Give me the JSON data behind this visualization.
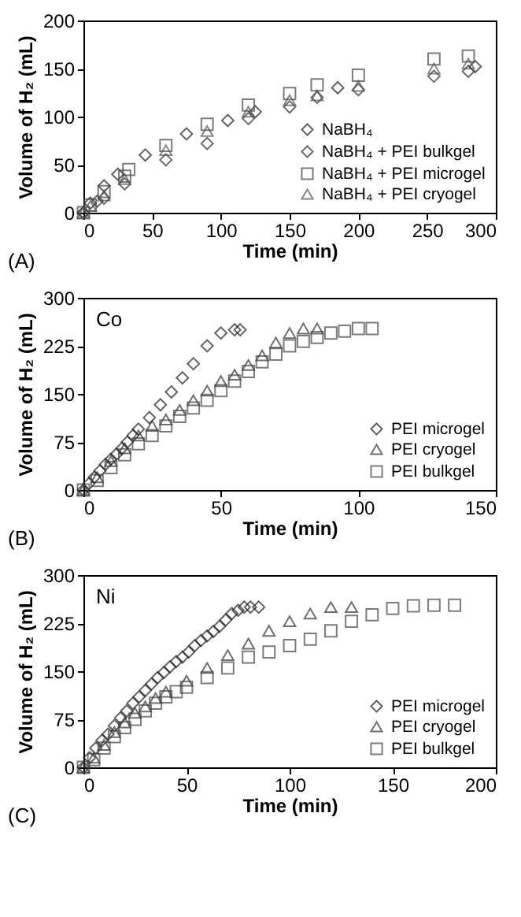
{
  "chart_data": [
    {
      "type": "scatter",
      "xlabel": "Time (min)",
      "ylabel": "Volume of H₂ (mL)",
      "xlim": [
        0,
        300
      ],
      "xticks": [
        0,
        50,
        100,
        150,
        200,
        250,
        300
      ],
      "ylim": [
        0,
        200
      ],
      "yticks": [
        0,
        50,
        100,
        150,
        200
      ],
      "legend": "bottom right",
      "annotations": [
        "(A)"
      ],
      "series": [
        {
          "name": "NaBH₄",
          "color": "#222222",
          "marker": "diamond",
          "x": [
            0,
            5,
            15,
            25,
            45,
            75,
            105,
            125,
            185,
            285
          ],
          "values": [
            0,
            10,
            28,
            40,
            60,
            82,
            96,
            105,
            130,
            152
          ]
        },
        {
          "name": "NaBH₄ + PEI bulkgel",
          "color": "#333333",
          "marker": "diamond",
          "x": [
            0,
            10,
            15,
            30,
            60,
            90,
            120,
            150,
            170,
            200,
            255,
            280
          ],
          "values": [
            0,
            12,
            15,
            30,
            55,
            72,
            98,
            110,
            120,
            128,
            142,
            147
          ]
        },
        {
          "name": "NaBH₄ + PEI microgel",
          "color": "#444444",
          "marker": "square",
          "x": [
            0,
            5,
            15,
            30,
            33,
            60,
            90,
            120,
            150,
            170,
            200,
            255,
            280
          ],
          "values": [
            0,
            8,
            22,
            38,
            45,
            70,
            92,
            112,
            124,
            133,
            143,
            160,
            163
          ]
        },
        {
          "name": "NaBH₄ + PEI cryogel",
          "color": "#555555",
          "marker": "triangle",
          "x": [
            0,
            5,
            15,
            30,
            60,
            90,
            120,
            150,
            170,
            200,
            255,
            280
          ],
          "values": [
            0,
            7,
            18,
            35,
            65,
            85,
            105,
            117,
            122,
            132,
            150,
            155
          ]
        }
      ]
    },
    {
      "type": "scatter",
      "xlabel": "Time (min)",
      "ylabel": "Volume of H₂ (mL)",
      "xlim": [
        0,
        150
      ],
      "xticks": [
        0,
        50,
        100,
        150
      ],
      "ylim": [
        0,
        300
      ],
      "yticks": [
        0,
        75,
        150,
        225,
        300
      ],
      "legend": "bottom right",
      "annotations": [
        "Co",
        "(B)"
      ],
      "series": [
        {
          "name": "PEI microgel",
          "color": "#222222",
          "marker": "diamond",
          "x": [
            0,
            2,
            4,
            6,
            8,
            10,
            12,
            14,
            16,
            18,
            20,
            24,
            28,
            32,
            36,
            40,
            45,
            50,
            55,
            57
          ],
          "values": [
            0,
            10,
            20,
            30,
            40,
            48,
            56,
            65,
            75,
            85,
            95,
            113,
            133,
            153,
            175,
            197,
            225,
            245,
            250,
            250
          ]
        },
        {
          "name": "PEI cryogel",
          "color": "#333333",
          "marker": "triangle",
          "x": [
            0,
            5,
            10,
            15,
            20,
            25,
            30,
            35,
            40,
            45,
            50,
            55,
            60,
            65,
            70,
            75,
            80,
            85
          ],
          "values": [
            0,
            20,
            45,
            65,
            85,
            100,
            110,
            125,
            140,
            155,
            170,
            180,
            195,
            210,
            230,
            245,
            252,
            252
          ]
        },
        {
          "name": "PEI bulkgel",
          "color": "#444444",
          "marker": "square",
          "x": [
            0,
            5,
            10,
            15,
            20,
            25,
            30,
            35,
            40,
            45,
            50,
            55,
            60,
            65,
            70,
            75,
            80,
            85,
            90,
            95,
            100,
            105
          ],
          "values": [
            0,
            15,
            35,
            55,
            72,
            85,
            100,
            115,
            128,
            140,
            155,
            170,
            185,
            200,
            212,
            225,
            232,
            238,
            245,
            248,
            252,
            252
          ]
        }
      ]
    },
    {
      "type": "scatter",
      "xlabel": "Time (min)",
      "ylabel": "Volume of H₂ (mL)",
      "xlim": [
        0,
        200
      ],
      "xticks": [
        0,
        50,
        100,
        150,
        200
      ],
      "ylim": [
        0,
        300
      ],
      "yticks": [
        0,
        75,
        150,
        225,
        300
      ],
      "legend": "bottom right",
      "annotations": [
        "Ni",
        "(C)"
      ],
      "series": [
        {
          "name": "PEI microgel",
          "color": "#222222",
          "marker": "diamond",
          "x": [
            0,
            3,
            6,
            9,
            12,
            15,
            18,
            21,
            24,
            27,
            30,
            33,
            36,
            39,
            42,
            45,
            48,
            51,
            54,
            57,
            60,
            63,
            66,
            69,
            72,
            75,
            78,
            81,
            85
          ],
          "values": [
            0,
            15,
            30,
            42,
            52,
            65,
            77,
            88,
            100,
            110,
            120,
            130,
            140,
            148,
            157,
            165,
            172,
            180,
            190,
            198,
            205,
            212,
            220,
            230,
            240,
            245,
            250,
            250,
            250
          ]
        },
        {
          "name": "PEI cryogel",
          "color": "#333333",
          "marker": "triangle",
          "x": [
            0,
            5,
            10,
            15,
            20,
            25,
            30,
            35,
            40,
            50,
            60,
            70,
            80,
            90,
            100,
            110,
            120,
            130
          ],
          "values": [
            0,
            15,
            35,
            55,
            70,
            85,
            95,
            108,
            118,
            135,
            155,
            175,
            193,
            213,
            228,
            240,
            250,
            250
          ]
        },
        {
          "name": "PEI bulkgel",
          "color": "#444444",
          "marker": "square",
          "x": [
            0,
            5,
            10,
            15,
            20,
            25,
            30,
            35,
            40,
            45,
            50,
            60,
            70,
            80,
            90,
            100,
            110,
            120,
            130,
            140,
            150,
            160,
            170,
            180
          ],
          "values": [
            0,
            12,
            30,
            48,
            62,
            75,
            88,
            100,
            110,
            118,
            125,
            140,
            155,
            172,
            180,
            190,
            200,
            213,
            228,
            238,
            248,
            252,
            253,
            253
          ]
        }
      ]
    }
  ]
}
